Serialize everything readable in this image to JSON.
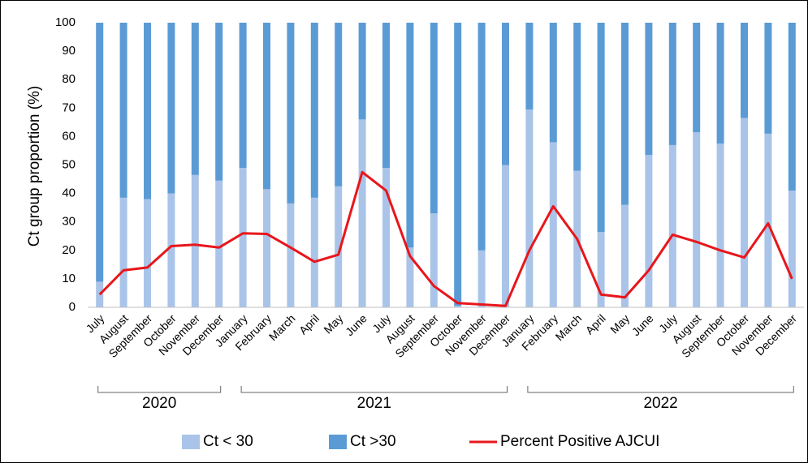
{
  "chart_data": {
    "type": "bar-line",
    "y_label": "Ct group proportion  (%)",
    "groups": [
      {
        "label": "2020",
        "categories": [
          "July",
          "August",
          "September",
          "October",
          "November",
          "December"
        ]
      },
      {
        "label": "2021",
        "categories": [
          "January",
          "February",
          "March",
          "April",
          "May",
          "June",
          "July",
          "August",
          "September",
          "October",
          "November",
          "December"
        ]
      },
      {
        "label": "2022",
        "categories": [
          "January",
          "February",
          "March",
          "April",
          "May",
          "June",
          "July",
          "August",
          "September",
          "October",
          "November",
          "December"
        ]
      }
    ],
    "series": [
      {
        "name": "Ct < 30",
        "type": "bar",
        "color": "#a9c4e8",
        "values": [
          9,
          38.5,
          38,
          40,
          46.5,
          44.5,
          49,
          41.5,
          36.5,
          38.5,
          42.5,
          66,
          49,
          21,
          33,
          0.5,
          20,
          50,
          69.5,
          58,
          48,
          26.5,
          36,
          53.5,
          57,
          61.5,
          57.5,
          66.5,
          61,
          41
        ]
      },
      {
        "name": "Ct >30",
        "type": "bar",
        "color": "#5b9bd5",
        "values": [
          91,
          61.5,
          62,
          60,
          53.5,
          55.5,
          51,
          58.5,
          63.5,
          61.5,
          57.5,
          34,
          51,
          79,
          67,
          99.5,
          80,
          50,
          30.5,
          42,
          52,
          73.5,
          64,
          46.5,
          43,
          38.5,
          42.5,
          33.5,
          39,
          59
        ]
      },
      {
        "name": "Percent Positive AJCUI",
        "type": "line",
        "color": "#e8161b",
        "values": [
          4.5,
          13,
          14,
          21.5,
          22,
          21,
          26,
          25.8,
          21,
          16,
          18.5,
          47.5,
          41,
          18,
          7.5,
          1.5,
          1,
          0.5,
          20,
          35.5,
          24,
          4.5,
          3.5,
          13,
          25.5,
          23,
          20,
          17.5,
          29.5,
          10
        ]
      }
    ],
    "ylim": [
      0,
      100
    ],
    "yticks": [
      0,
      10,
      20,
      30,
      40,
      50,
      60,
      70,
      80,
      90,
      100
    ],
    "grid": false,
    "stacked": true
  }
}
